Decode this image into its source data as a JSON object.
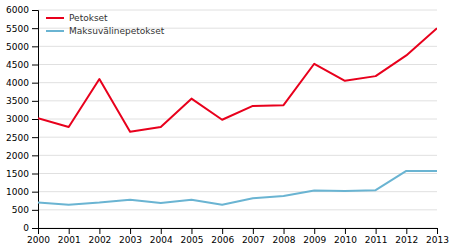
{
  "chart_data": {
    "type": "line",
    "x": [
      2000,
      2001,
      2002,
      2003,
      2004,
      2005,
      2006,
      2007,
      2008,
      2009,
      2010,
      2011,
      2012,
      2013
    ],
    "series": [
      {
        "name": "Petokset",
        "color": "#e8001c",
        "values": [
          3020,
          2780,
          4100,
          2650,
          2780,
          3560,
          2980,
          3360,
          3380,
          4520,
          4050,
          4180,
          4750,
          5500
        ]
      },
      {
        "name": "Maksuvälinepetokset",
        "color": "#6ab4d2",
        "values": [
          700,
          640,
          700,
          780,
          690,
          780,
          640,
          820,
          880,
          1030,
          1020,
          1040,
          1570,
          1570
        ]
      }
    ],
    "xlim": [
      2000,
      2013
    ],
    "xticks": [
      2000,
      2001,
      2002,
      2003,
      2004,
      2005,
      2006,
      2007,
      2008,
      2009,
      2010,
      2011,
      2012,
      2013
    ],
    "ylim": [
      0,
      6000
    ],
    "yticks": [
      0,
      500,
      1000,
      1500,
      2000,
      2500,
      3000,
      3500,
      4000,
      4500,
      5000,
      5500,
      6000
    ],
    "grid": true,
    "legend": "upper left"
  }
}
